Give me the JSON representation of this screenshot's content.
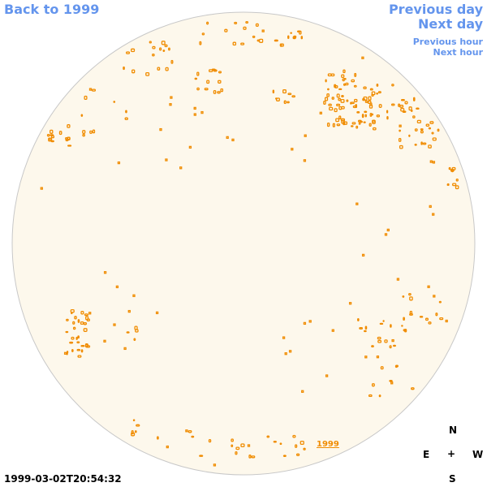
{
  "nav": {
    "back": "Back to 1999",
    "previous_day": "Previous day",
    "next_day": "Next day",
    "previous_hour": "Previous hour",
    "next_hour": "Next hour"
  },
  "compass": {
    "north": "N",
    "east": "E",
    "west": "W",
    "south": "S",
    "center": "+"
  },
  "timestamp": "1999-03-02T20:54:32",
  "year_tag": "1999",
  "colors": {
    "disk_fill": "#fdf8ec",
    "disk_stroke": "#c8c8c8",
    "feature": "#f08c00",
    "link": "#6495ed"
  },
  "icons": {
    "sun": "solar-disk-icon"
  }
}
